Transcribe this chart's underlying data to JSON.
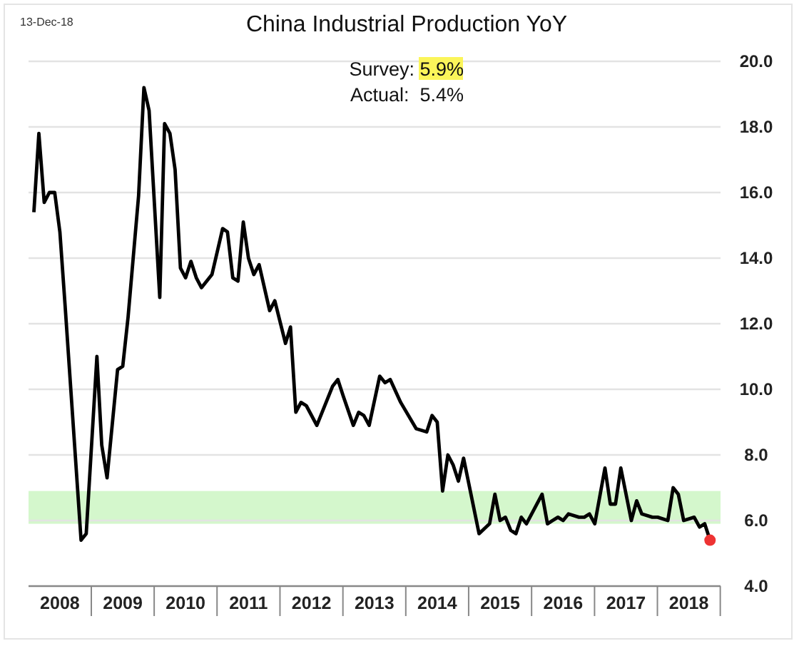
{
  "chart_data": {
    "type": "line",
    "title": "China Industrial Production YoY",
    "annotations": [
      "13-Dec-18",
      "Survey: 5.9%",
      "Actual:  5.4%"
    ],
    "xlim": [
      "2008-01",
      "2019-01"
    ],
    "xticks": [
      {
        "value": "2008-07",
        "label": "2008"
      },
      {
        "value": "2009-07",
        "label": "2009"
      },
      {
        "value": "2010-07",
        "label": "2010"
      },
      {
        "value": "2011-07",
        "label": "2011"
      },
      {
        "value": "2012-07",
        "label": "2012"
      },
      {
        "value": "2013-07",
        "label": "2013"
      },
      {
        "value": "2014-07",
        "label": "2014"
      },
      {
        "value": "2015-07",
        "label": "2015"
      },
      {
        "value": "2016-07",
        "label": "2016"
      },
      {
        "value": "2017-07",
        "label": "2017"
      },
      {
        "value": "2018-07",
        "label": "2018"
      }
    ],
    "ylim": [
      4,
      20
    ],
    "yticks": [
      {
        "value": 4,
        "label": "4.0"
      },
      {
        "value": 6,
        "label": "6.0"
      },
      {
        "value": 8,
        "label": "8.0"
      },
      {
        "value": 10,
        "label": "10.0"
      },
      {
        "value": 12,
        "label": "12.0"
      },
      {
        "value": 14,
        "label": "14.0"
      },
      {
        "value": 16,
        "label": "16.0"
      },
      {
        "value": 18,
        "label": "18.0"
      },
      {
        "value": 20,
        "label": "20.0"
      }
    ],
    "grid": "y",
    "bands": [
      {
        "axis": "y",
        "from": 5.9,
        "to": 6.9,
        "color": "#d4f7cc"
      }
    ],
    "series": [
      {
        "type": "line",
        "color": "#000000",
        "x": [
          "2008-02",
          "2008-03",
          "2008-04",
          "2008-05",
          "2008-06",
          "2008-07",
          "2008-08",
          "2008-11",
          "2008-12",
          "2009-02",
          "2009-03",
          "2009-04",
          "2009-06",
          "2009-07",
          "2009-08",
          "2009-10",
          "2009-11",
          "2009-12",
          "2010-02",
          "2010-03",
          "2010-04",
          "2010-05",
          "2010-06",
          "2010-07",
          "2010-08",
          "2010-09",
          "2010-10",
          "2010-12",
          "2011-02",
          "2011-03",
          "2011-04",
          "2011-05",
          "2011-06",
          "2011-07",
          "2011-08",
          "2011-09",
          "2011-11",
          "2011-12",
          "2012-02",
          "2012-03",
          "2012-04",
          "2012-05",
          "2012-06",
          "2012-08",
          "2012-11",
          "2012-12",
          "2013-01",
          "2013-03",
          "2013-04",
          "2013-05",
          "2013-06",
          "2013-08",
          "2013-09",
          "2013-10",
          "2013-12",
          "2014-03",
          "2014-05",
          "2014-06",
          "2014-07",
          "2014-08",
          "2014-09",
          "2014-10",
          "2014-11",
          "2014-12",
          "2015-03",
          "2015-05",
          "2015-06",
          "2015-07",
          "2015-08",
          "2015-09",
          "2015-10",
          "2015-11",
          "2015-12",
          "2016-03",
          "2016-04",
          "2016-05",
          "2016-06",
          "2016-07",
          "2016-08",
          "2016-10",
          "2016-11",
          "2016-12",
          "2017-01",
          "2017-03",
          "2017-04",
          "2017-05",
          "2017-06",
          "2017-08",
          "2017-09",
          "2017-10",
          "2017-12",
          "2018-01",
          "2018-03",
          "2018-04",
          "2018-05",
          "2018-06",
          "2018-08",
          "2018-09",
          "2018-10",
          "2018-11"
        ],
        "values": [
          15.4,
          17.8,
          15.7,
          16.0,
          16.0,
          14.8,
          12.5,
          5.4,
          5.6,
          11.0,
          8.3,
          7.3,
          10.6,
          10.7,
          12.2,
          15.9,
          19.2,
          18.5,
          12.8,
          18.1,
          17.8,
          16.7,
          13.7,
          13.4,
          13.9,
          13.4,
          13.1,
          13.5,
          14.9,
          14.8,
          13.4,
          13.3,
          15.1,
          14.0,
          13.5,
          13.8,
          12.4,
          12.7,
          11.4,
          11.9,
          9.3,
          9.6,
          9.5,
          8.9,
          10.1,
          10.3,
          9.8,
          8.9,
          9.3,
          9.2,
          8.9,
          10.4,
          10.2,
          10.3,
          9.6,
          8.8,
          8.7,
          9.2,
          9.0,
          6.9,
          8.0,
          7.7,
          7.2,
          7.9,
          5.6,
          5.9,
          6.8,
          6.0,
          6.1,
          5.7,
          5.6,
          6.1,
          5.9,
          6.8,
          5.9,
          6.0,
          6.1,
          6.0,
          6.2,
          6.1,
          6.1,
          6.2,
          5.9,
          7.6,
          6.5,
          6.5,
          7.6,
          6.0,
          6.6,
          6.2,
          6.1,
          6.1,
          6.0,
          7.0,
          6.8,
          6.0,
          6.1,
          5.8,
          5.9,
          5.4
        ]
      },
      {
        "type": "scatter",
        "color": "#ee3333",
        "marker": "circle",
        "x": [
          "2018-11"
        ],
        "values": [
          5.4
        ]
      }
    ]
  }
}
